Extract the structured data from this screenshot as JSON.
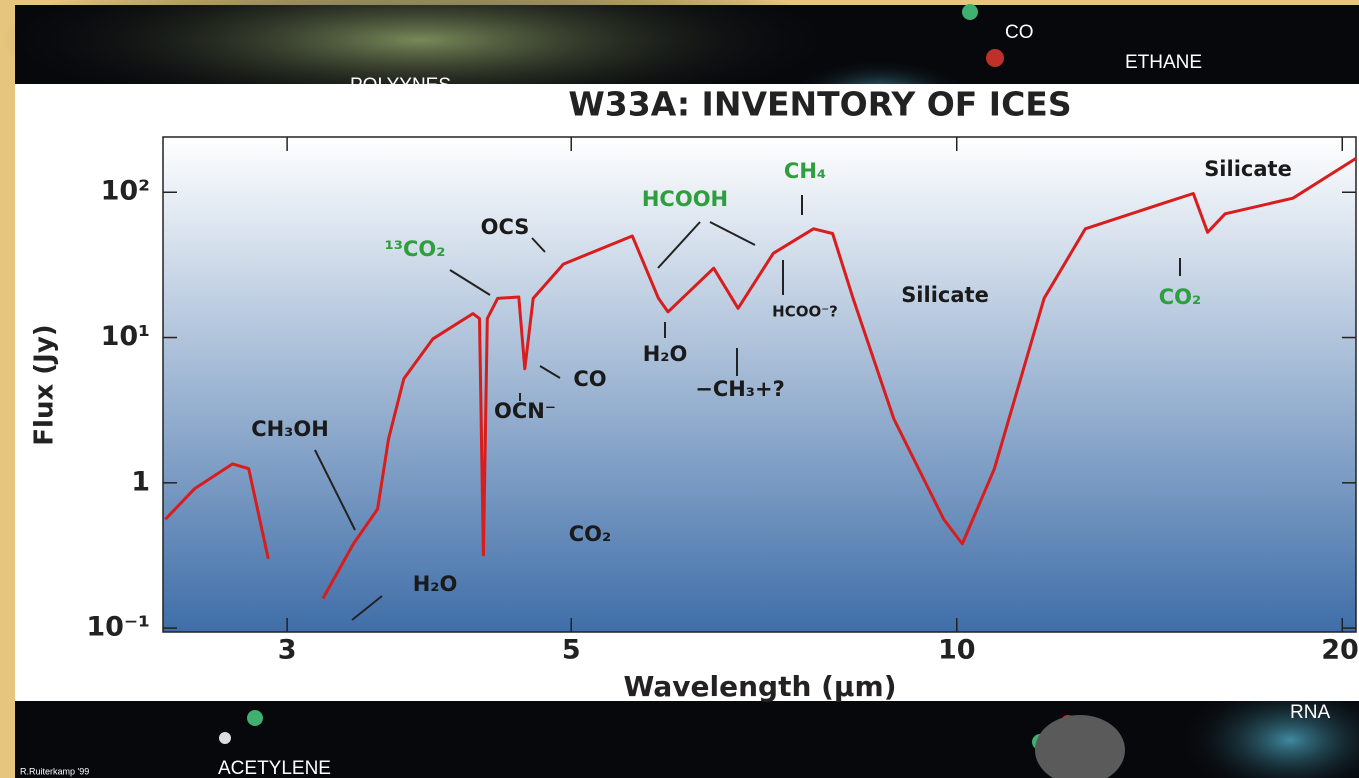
{
  "background": {
    "labels": [
      "CO",
      "ETHANE",
      "POLYYNES",
      "ACETYLENE",
      "RNA",
      "R.Ruiterkamp '99"
    ]
  },
  "chart_data": {
    "type": "line",
    "title": "W33A: INVENTORY OF ICES",
    "xlabel": "Wavelength (µm)",
    "ylabel": "Flux (Jy)",
    "xscale": "log",
    "yscale": "log",
    "xlim": [
      2.4,
      20.5
    ],
    "ylim": [
      0.094,
      240
    ],
    "xticks": [
      3,
      5,
      10,
      20
    ],
    "yticks": [
      {
        "value": 0.1,
        "label": "10⁻¹"
      },
      1,
      {
        "value": 10,
        "label": "10¹"
      },
      {
        "value": 100,
        "label": "10²"
      }
    ],
    "x": [
      2.41,
      2.54,
      2.72,
      2.8,
      2.9,
      3.05,
      3.2,
      3.38,
      3.53,
      3.6,
      3.7,
      3.9,
      4.19,
      4.24,
      4.27,
      4.3,
      4.38,
      4.55,
      4.6,
      4.67,
      4.93,
      5.58,
      5.85,
      5.95,
      6.46,
      6.75,
      7.19,
      7.73,
      8.0,
      8.3,
      8.93,
      9.77,
      10.1,
      10.7,
      11.7,
      12.6,
      14.5,
      15.3,
      15.7,
      16.2,
      18.3,
      20.5
    ],
    "series": [
      {
        "name": "W33A",
        "color": "#d91c1c",
        "values": [
          0.56,
          0.91,
          1.35,
          1.25,
          0.3,
          null,
          0.16,
          0.38,
          0.66,
          2.0,
          5.2,
          9.8,
          14.6,
          13.5,
          0.32,
          13.5,
          18.6,
          19,
          6.1,
          18.6,
          32,
          50,
          18.6,
          15,
          30,
          15.9,
          38,
          56,
          52,
          18.6,
          2.76,
          0.56,
          0.38,
          1.25,
          18.6,
          56,
          84,
          98,
          53,
          71,
          91,
          171
        ]
      }
    ],
    "annotations": [
      {
        "text": "¹³CO₂",
        "color": "#2e9e3e"
      },
      {
        "text": "CH₃OH",
        "color": "#1a1a1a"
      },
      {
        "text": "H₂O",
        "color": "#1a1a1a"
      },
      {
        "text": "CO₂",
        "color": "#1a1a1a"
      },
      {
        "text": "OCS",
        "color": "#1a1a1a"
      },
      {
        "text": "HCOOH",
        "color": "#2e9e3e"
      },
      {
        "text": "CH₄",
        "color": "#2e9e3e"
      },
      {
        "text": "HCOO⁻?",
        "color": "#1a1a1a"
      },
      {
        "text": "Silicate",
        "color": "#1a1a1a"
      },
      {
        "text": "Silicate",
        "color": "#1a1a1a"
      },
      {
        "text": "CO",
        "color": "#1a1a1a"
      },
      {
        "text": "OCN⁻",
        "color": "#1a1a1a"
      },
      {
        "text": "H₂O",
        "color": "#1a1a1a"
      },
      {
        "text": "−CH₃+?",
        "color": "#1a1a1a"
      },
      {
        "text": "CO₂",
        "color": "#2e9e3e"
      }
    ]
  }
}
